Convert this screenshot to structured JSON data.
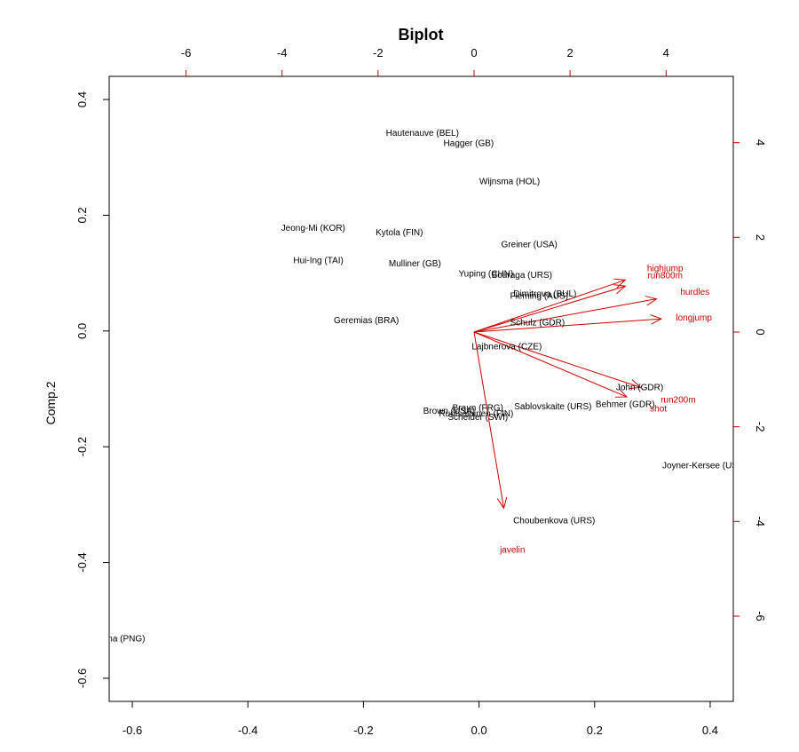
{
  "chart_data": {
    "type": "scatter",
    "title": "Biplot",
    "xlabel": "",
    "ylabel": "Comp.2",
    "colors": {
      "observations": "#000000",
      "variables": "#d00000",
      "frame": "#000000"
    },
    "primary_axes": {
      "xlim": [
        -0.64,
        0.44
      ],
      "ylim": [
        -0.64,
        0.44
      ],
      "xticks": [
        -0.6,
        -0.4,
        -0.2,
        0.0,
        0.2,
        0.4
      ],
      "xtick_labels": [
        "-0.6",
        "-0.4",
        "-0.2",
        "0.0",
        "0.2",
        "0.4"
      ],
      "yticks": [
        -0.6,
        -0.4,
        -0.2,
        0.0,
        0.2,
        0.4
      ],
      "ytick_labels": [
        "-0.6",
        "-0.4",
        "-0.2",
        "0.0",
        "0.2",
        "0.4"
      ]
    },
    "secondary_axes": {
      "xlim": [
        -7.6,
        5.4
      ],
      "ylim": [
        -7.8,
        5.4
      ],
      "xticks": [
        -6,
        -4,
        -2,
        0,
        2,
        4
      ],
      "xtick_labels": [
        "-6",
        "-4",
        "-2",
        "0",
        "2",
        "4"
      ],
      "yticks": [
        -6,
        -4,
        -2,
        0,
        2,
        4
      ],
      "ytick_labels": [
        "-6",
        "-4",
        "-2",
        "0",
        "2",
        "4"
      ]
    },
    "observations": [
      {
        "label": "Hautenauve (BEL)",
        "x": -0.098,
        "y": 0.342
      },
      {
        "label": "Hagger (GB)",
        "x": -0.018,
        "y": 0.324
      },
      {
        "label": "Wijnsma (HOL)",
        "x": 0.053,
        "y": 0.258
      },
      {
        "label": "Jeong-Mi (KOR)",
        "x": -0.287,
        "y": 0.178
      },
      {
        "label": "Kytola (FIN)",
        "x": -0.138,
        "y": 0.17
      },
      {
        "label": "Greiner (USA)",
        "x": 0.087,
        "y": 0.149
      },
      {
        "label": "Hui-Ing (TAI)",
        "x": -0.278,
        "y": 0.122
      },
      {
        "label": "Mulliner (GB)",
        "x": -0.111,
        "y": 0.116
      },
      {
        "label": "Yuping (CHN)",
        "x": 0.012,
        "y": 0.099
      },
      {
        "label": "Bouraga (URS)",
        "x": 0.074,
        "y": 0.096
      },
      {
        "label": "Dimitrova (BUL)",
        "x": 0.114,
        "y": 0.064
      },
      {
        "label": "Fleming (AUS)",
        "x": 0.104,
        "y": 0.06
      },
      {
        "label": "Geremias (BRA)",
        "x": -0.195,
        "y": 0.018
      },
      {
        "label": "Schulz (GDR)",
        "x": 0.101,
        "y": 0.014
      },
      {
        "label": "Lajbnerova (CZE)",
        "x": 0.048,
        "y": -0.027
      },
      {
        "label": "John (GDR)",
        "x": 0.278,
        "y": -0.098
      },
      {
        "label": "Behmer (GDR)",
        "x": 0.253,
        "y": -0.127
      },
      {
        "label": "Sablovskaite (URS)",
        "x": 0.128,
        "y": -0.131
      },
      {
        "label": "Braun (FRG)",
        "x": -0.002,
        "y": -0.133
      },
      {
        "label": "Brown (USA)",
        "x": -0.052,
        "y": -0.138
      },
      {
        "label": "Ruotsalainen (FIN)",
        "x": -0.005,
        "y": -0.143
      },
      {
        "label": "Scheider (SWI)",
        "x": -0.002,
        "y": -0.149
      },
      {
        "label": "Joyner-Kersee (USA)",
        "x": 0.39,
        "y": -0.233
      },
      {
        "label": "Choubenkova (URS)",
        "x": 0.13,
        "y": -0.328
      },
      {
        "label": "Launa (PNG)",
        "x": -0.623,
        "y": -0.532
      }
    ],
    "variables": [
      {
        "name": "highjump",
        "x": 3.15,
        "y": 1.1,
        "label_x": 3.98,
        "label_y": 1.34
      },
      {
        "name": "run800m",
        "x": 3.15,
        "y": 0.97,
        "label_x": 3.98,
        "label_y": 1.19
      },
      {
        "name": "hurdles",
        "x": 3.8,
        "y": 0.7,
        "label_x": 4.6,
        "label_y": 0.84
      },
      {
        "name": "longjump",
        "x": 3.9,
        "y": 0.28,
        "label_x": 4.58,
        "label_y": 0.3
      },
      {
        "name": "run200m",
        "x": 3.47,
        "y": -1.17,
        "label_x": 4.25,
        "label_y": -1.43
      },
      {
        "name": "shot",
        "x": 3.18,
        "y": -1.37,
        "label_x": 3.84,
        "label_y": -1.62
      },
      {
        "name": "javelin",
        "x": 0.62,
        "y": -3.72,
        "label_x": 0.8,
        "label_y": -4.6
      }
    ]
  }
}
